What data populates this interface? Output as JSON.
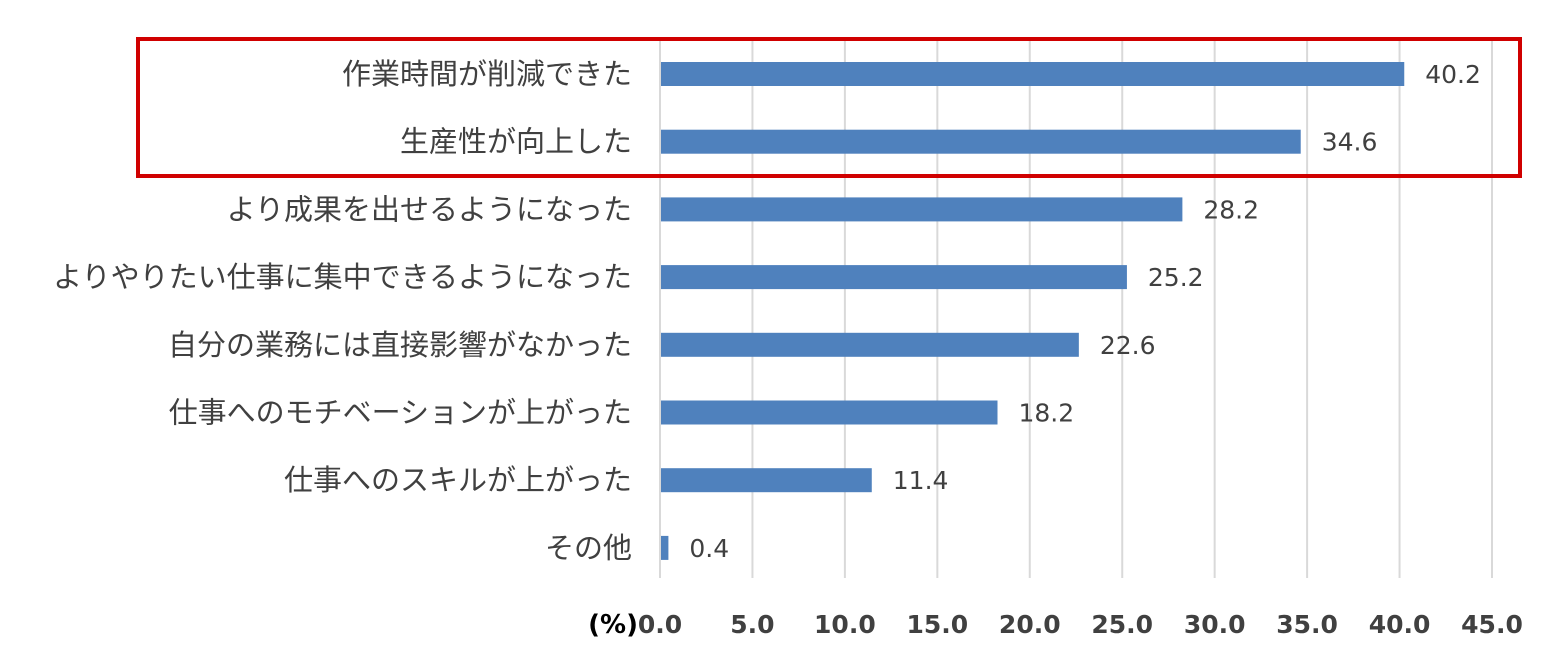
{
  "chart_data": {
    "type": "bar",
    "orientation": "horizontal",
    "categories": [
      "作業時間が削減できた",
      "生産性が向上した",
      "より成果を出せるようになった",
      "よりやりたい仕事に集中できるようになった",
      "自分の業務には直接影響がなかった",
      "仕事へのモチベーションが上がった",
      "仕事へのスキルが上がった",
      "その他"
    ],
    "values": [
      40.2,
      34.6,
      28.2,
      25.2,
      22.6,
      18.2,
      11.4,
      0.4
    ],
    "value_labels": [
      "40.2",
      "34.6",
      "28.2",
      "25.2",
      "22.6",
      "18.2",
      "11.4",
      "0.4"
    ],
    "xlim": [
      0,
      45
    ],
    "x_ticks": [
      "0.0",
      "5.0",
      "10.0",
      "15.0",
      "20.0",
      "25.0",
      "30.0",
      "35.0",
      "40.0",
      "45.0"
    ],
    "x_unit": "(%)",
    "grid": "vertical",
    "highlighted_categories": [
      0,
      1
    ],
    "colors": {
      "bar": "#4f81bd",
      "grid": "#d9d9d9",
      "highlight": "#d00000",
      "text": "#404040"
    }
  }
}
